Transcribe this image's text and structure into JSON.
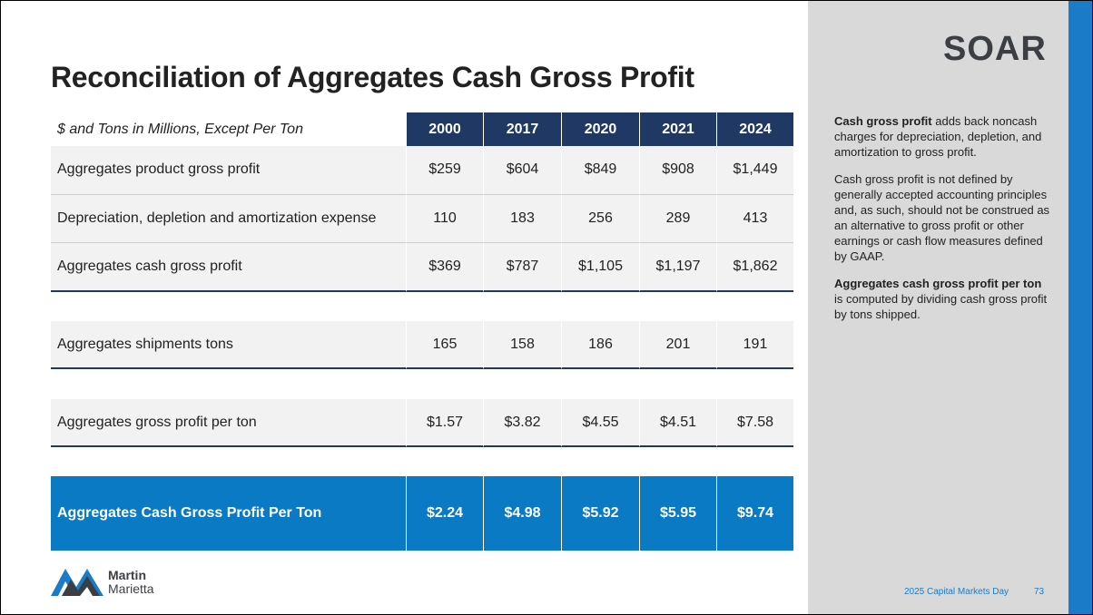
{
  "title": "Reconciliation of Aggregates Cash Gross Profit",
  "table": {
    "header_label": "$ and Tons in Millions, Except Per Ton",
    "columns": [
      "2000",
      "2017",
      "2020",
      "2021",
      "2024"
    ],
    "groups": [
      [
        {
          "label": "Aggregates product gross profit",
          "values": [
            "$259",
            "$604",
            "$849",
            "$908",
            "$1,449"
          ]
        },
        {
          "label": "Depreciation, depletion and amortization expense",
          "values": [
            "110",
            "183",
            "256",
            "289",
            "413"
          ]
        },
        {
          "label": "Aggregates cash gross profit",
          "values": [
            "$369",
            "$787",
            "$1,105",
            "$1,197",
            "$1,862"
          ]
        }
      ],
      [
        {
          "label": "Aggregates shipments tons",
          "values": [
            "165",
            "158",
            "186",
            "201",
            "191"
          ]
        }
      ],
      [
        {
          "label": "Aggregates gross profit per ton",
          "values": [
            "$1.57",
            "$3.82",
            "$4.55",
            "$4.51",
            "$7.58"
          ]
        }
      ],
      [
        {
          "label": "Aggregates Cash Gross Profit Per Ton",
          "values": [
            "$2.24",
            "$4.98",
            "$5.92",
            "$5.95",
            "$9.74"
          ]
        }
      ]
    ]
  },
  "notes": [
    {
      "bold": "Cash gross profit",
      "text": " adds back noncash charges for depreciation, depletion, and amortization to gross profit."
    },
    {
      "text": "Cash gross profit is not defined by generally accepted accounting principles and, as such, should not be construed as an alternative to gross profit or other earnings or cash flow measures defined by GAAP."
    },
    {
      "bold": "Aggregates cash gross profit per ton",
      "text": " is computed by dividing cash gross profit by tons shipped."
    }
  ],
  "logo_top": "SOAR",
  "logo_bottom": {
    "line1": "Martin",
    "line2": "Marietta"
  },
  "footer": {
    "event": "2025 Capital Markets Day",
    "page": "73"
  }
}
